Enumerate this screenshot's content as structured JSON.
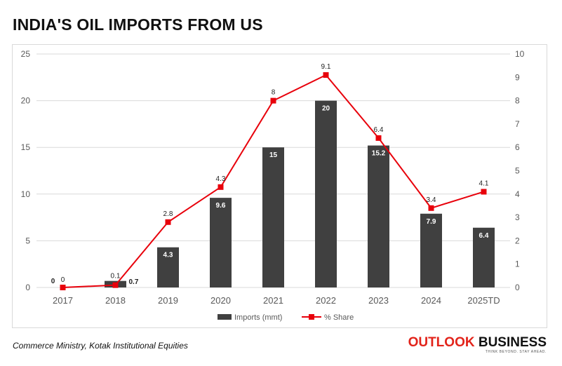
{
  "title": "INDIA'S OIL IMPORTS FROM US",
  "source": "Commerce Ministry, Kotak Institutional Equities",
  "brand": {
    "word1": "OUTLOOK",
    "word2": "BUSINESS",
    "tagline": "THINK BEYOND. STAY AHEAD."
  },
  "colors": {
    "bar": "#404040",
    "line": "#e8000b",
    "grid": "#d9d9d9",
    "axis_text": "#595959",
    "brand_red": "#e2231a"
  },
  "chart_data": {
    "type": "bar",
    "categories": [
      "2017",
      "2018",
      "2019",
      "2020",
      "2021",
      "2022",
      "2023",
      "2024",
      "2025TD"
    ],
    "series": [
      {
        "name": "Imports (mmt)",
        "type": "bar",
        "axis": "left",
        "values": [
          0,
          0.7,
          4.3,
          9.6,
          15,
          20,
          15.2,
          7.9,
          6.4
        ],
        "labels": [
          "0",
          "0.7",
          "4.3",
          "9.6",
          "15",
          "20",
          "15.2",
          "7.9",
          "6.4"
        ]
      },
      {
        "name": "% Share",
        "type": "line",
        "axis": "right",
        "values": [
          0,
          0.1,
          2.8,
          4.3,
          8,
          9.1,
          6.4,
          3.4,
          4.1
        ],
        "labels": [
          "0",
          "0.1",
          "2.8",
          "4.3",
          "8",
          "9.1",
          "6.4",
          "3.4",
          "4.1"
        ]
      }
    ],
    "y_left": {
      "min": 0,
      "max": 25,
      "ticks": [
        0,
        5,
        10,
        15,
        20,
        25
      ]
    },
    "y_right": {
      "min": 0,
      "max": 10,
      "ticks": [
        0,
        1,
        2,
        3,
        4,
        5,
        6,
        7,
        8,
        9,
        10
      ]
    },
    "grid": true,
    "legend_position": "bottom"
  }
}
